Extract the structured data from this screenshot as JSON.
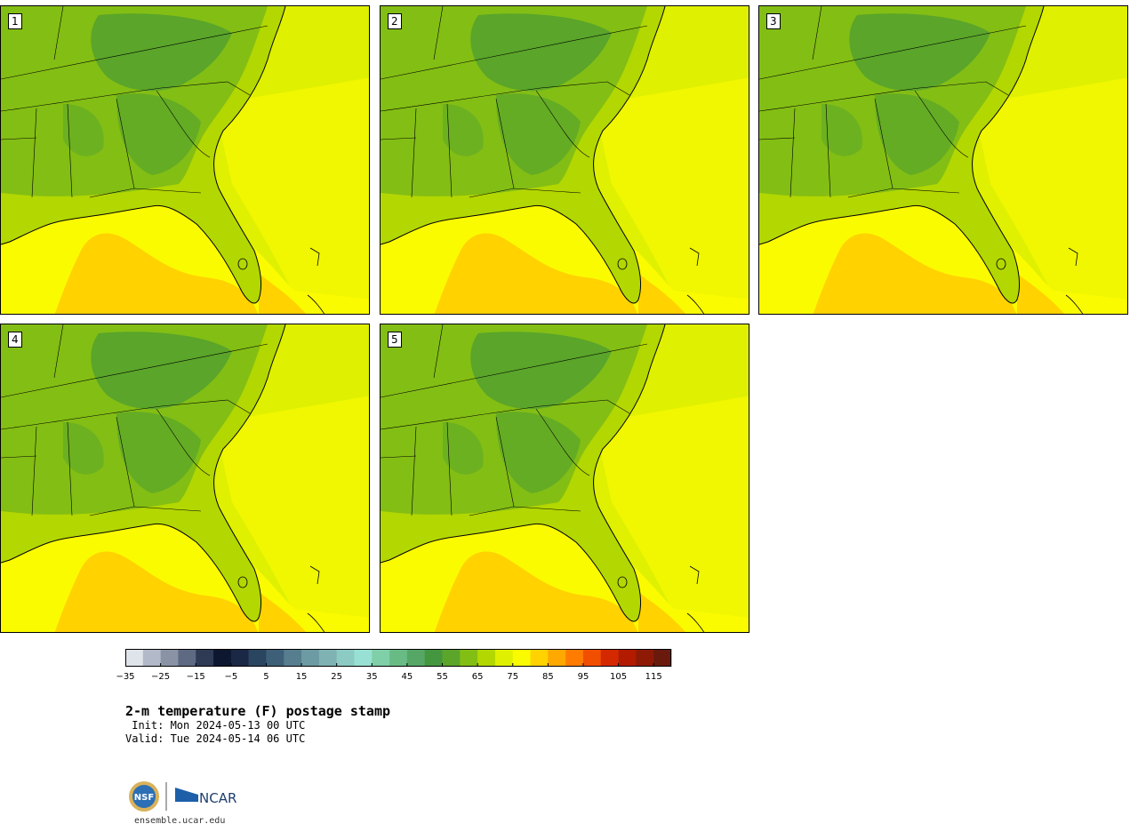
{
  "panels": [
    {
      "label": "1"
    },
    {
      "label": "2"
    },
    {
      "label": "3"
    },
    {
      "label": "4"
    },
    {
      "label": "5"
    }
  ],
  "colorbar": {
    "colors": [
      "#dfe3ea",
      "#b2b9c8",
      "#8a93a6",
      "#5e6a82",
      "#2f3a55",
      "#0e1730",
      "#1a2845",
      "#2a4560",
      "#3d6078",
      "#567e8f",
      "#6c9ba3",
      "#7fb3b3",
      "#8ccbc4",
      "#98e0d3",
      "#7fcfa8",
      "#69bb85",
      "#56a766",
      "#44963f",
      "#5aa52a",
      "#83be14",
      "#b3d700",
      "#dff000",
      "#fbfb00",
      "#ffd200",
      "#ffa800",
      "#ff7c00",
      "#f14e00",
      "#d42800",
      "#b21b00",
      "#8e1a05",
      "#6a1a0c"
    ],
    "ticks": [
      "−35",
      "−25",
      "−15",
      "−5",
      "5",
      "15",
      "25",
      "35",
      "45",
      "55",
      "65",
      "75",
      "85",
      "95",
      "105",
      "115"
    ],
    "min": -35,
    "max": 120
  },
  "title": "2-m temperature (F) postage stamp",
  "init": " Init: Mon 2024-05-13 00 UTC",
  "valid": "Valid: Tue 2024-05-14 06 UTC",
  "footer": {
    "logo_nsf": "NSF",
    "logo_ncar": "NCAR",
    "site": "ensemble.ucar.edu"
  },
  "map_colors": {
    "cool": "#5aa52a",
    "mid": "#83be14",
    "warm": "#b3d700",
    "ocean_near": "#dff000",
    "ocean_warm": "#fbfb00",
    "gulf_hot": "#ffd200"
  }
}
